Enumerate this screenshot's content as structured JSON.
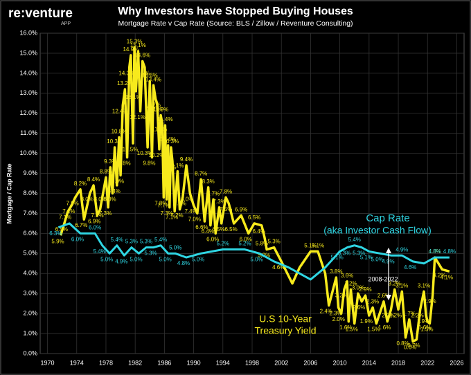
{
  "chart_data": {
    "type": "line",
    "logo": "re:venture",
    "logo_sub": "APP",
    "title": "Why Investors have Stopped Buying Houses",
    "subtitle": "Mortgage Rate v Cap Rate (Source: BLS / Zillow / Reventure Consulting)",
    "y_label": "Mortgage / Cap Rate",
    "annotations": [
      "Cap Rate",
      "(aka Investor Cash Flow)",
      "2008-2022",
      "U.S 10-Year",
      "Treasury Yield"
    ],
    "grid": true,
    "xlim": [
      1969,
      2027
    ],
    "xticks": [
      1970,
      1974,
      1978,
      1982,
      1986,
      1990,
      1994,
      1998,
      2002,
      2006,
      2010,
      2014,
      2018,
      2022,
      2026
    ],
    "ylim": [
      0,
      16
    ],
    "yticks": [
      {
        "value": 0,
        "label": "0.0%"
      },
      {
        "value": 1,
        "label": "1.0%"
      },
      {
        "value": 2,
        "label": "2.0%"
      },
      {
        "value": 3,
        "label": "3.0%"
      },
      {
        "value": 4,
        "label": "4.0%"
      },
      {
        "value": 5,
        "label": "5.0%"
      },
      {
        "value": 6,
        "label": "6.0%"
      },
      {
        "value": 7,
        "label": "7.0%"
      },
      {
        "value": 8,
        "label": "8.0%"
      },
      {
        "value": 9,
        "label": "9.0%"
      },
      {
        "value": 10,
        "label": "10.0%"
      },
      {
        "value": 11,
        "label": "11.0%"
      },
      {
        "value": 12,
        "label": "12.0%"
      },
      {
        "value": 13,
        "label": "13.0%"
      },
      {
        "value": 14,
        "label": "14.0%"
      },
      {
        "value": 15,
        "label": "15.0%"
      },
      {
        "value": 16,
        "label": "16.0%"
      }
    ],
    "series": [
      {
        "color": "#f7ea1c",
        "x": [
          1971.8,
          1972.3,
          1972.8,
          1973.3,
          1973.8,
          1974.5,
          1975.0,
          1975.8,
          1976.3,
          1976.8,
          1977.2,
          1977.6,
          1978.0,
          1978.3,
          1978.6,
          1978.9,
          1979.2,
          1979.5,
          1979.8,
          1980.0,
          1980.3,
          1980.6,
          1980.9,
          1981.2,
          1981.4,
          1981.7,
          1981.9,
          1982.1,
          1982.4,
          1982.7,
          1983.0,
          1983.3,
          1983.7,
          1984.0,
          1984.3,
          1984.5,
          1984.8,
          1985.0,
          1985.3,
          1985.5,
          1985.7,
          1985.9,
          1986.1,
          1986.3,
          1986.5,
          1986.7,
          1986.9,
          1987.1,
          1987.4,
          1987.8,
          1988.1,
          1988.5,
          1989.0,
          1989.5,
          1990.0,
          1990.5,
          1991.0,
          1991.5,
          1992.0,
          1992.3,
          1992.7,
          1993.0,
          1993.5,
          1993.8,
          1994.4,
          1994.8,
          1995.5,
          1996.5,
          1997.5,
          1998.3,
          1999.3,
          1999.7,
          2000.0,
          2001.0,
          2002.0,
          2003.5,
          2004.5,
          2006.0,
          2007.0,
          2008.0,
          2008.5,
          2009.5,
          2009.8,
          2010.2,
          2010.6,
          2011.0,
          2011.2,
          2011.5,
          2012.0,
          2012.5,
          2013.0,
          2013.5,
          2014.0,
          2014.5,
          2015.0,
          2016.0,
          2016.5,
          2017.0,
          2017.5,
          2018.0,
          2018.5,
          2019.0,
          2019.5,
          2020.0,
          2020.5,
          2021.0,
          2021.5,
          2021.8,
          2022.0,
          2022.3,
          2022.7,
          2023.0,
          2024.0,
          2025.0
        ],
        "values": [
          5.9,
          6.5,
          7.1,
          7.4,
          7.8,
          8.2,
          6.7,
          8.0,
          8.4,
          6.9,
          7.2,
          8.0,
          8.8,
          7.3,
          9.3,
          8.0,
          10.3,
          8.4,
          10.8,
          8.9,
          12.4,
          13.2,
          9.8,
          14.3,
          14.9,
          10.5,
          15.3,
          13.1,
          15.1,
          12.1,
          14.6,
          14.3,
          10.3,
          13.6,
          9.8,
          13.4,
          12.7,
          12.5,
          10.2,
          11.9,
          11.5,
          7.8,
          11.4,
          7.7,
          10.4,
          7.3,
          10.3,
          9.6,
          7.1,
          9.1,
          7.2,
          7.8,
          9.4,
          8.0,
          7.4,
          7.0,
          8.7,
          6.6,
          8.3,
          6.4,
          7.7,
          6.0,
          7.3,
          6.5,
          7.8,
          7.5,
          6.5,
          6.9,
          6.0,
          6.5,
          6.4,
          5.8,
          5.2,
          5.3,
          4.6,
          3.5,
          4.3,
          5.1,
          5.1,
          4.0,
          2.4,
          3.8,
          2.3,
          2.0,
          3.2,
          3.6,
          1.6,
          3.2,
          1.5,
          3.0,
          2.6,
          2.9,
          1.9,
          2.3,
          1.5,
          2.6,
          1.6,
          2.2,
          3.2,
          2.2,
          3.1,
          0.8,
          1.7,
          0.6,
          0.7,
          2.2,
          3.1,
          1.9,
          1.6,
          1.5,
          2.9,
          4.8,
          4.2,
          4.1
        ],
        "value_labels": [
          "5.9%",
          "6.5%",
          "7.1%",
          "7.4%",
          "7.8%",
          "8.2%",
          "6.7%",
          "8.0%",
          "8.4%",
          "6.9%",
          "7.2%",
          "8.0%",
          "8.8%",
          "7.3%",
          "9.3%",
          "8.0%",
          "10.3%",
          "8.4%",
          "10.8%",
          "8.9%",
          "12.4%",
          "13.2%",
          "9.8%",
          "14.3%",
          "14.9%",
          "10.5%",
          "15.3%",
          "13.1%",
          "15.1%",
          "12.1%",
          "14.6%",
          "14.3%",
          "10.3%",
          "13.6%",
          "9.8%",
          "13.4%",
          "12.7%",
          "12.5%",
          "10.2%",
          "11.9%",
          "11.5%",
          "7.8%",
          "11.4%",
          "7.7%",
          "10.4%",
          "7.3%",
          "10.3%",
          "9.6%",
          "7.1%",
          "9.1%",
          "7.2%",
          "7.8%",
          "9.4%",
          "8.0%",
          "7.4%",
          "7.0%",
          "8.7%",
          "6.6%",
          "8.3%",
          "6.4%",
          "7.7%",
          "6.0%",
          "7.3%",
          "6.5%",
          "7.8%",
          "7.5%",
          "6.5%",
          "6.9%",
          "6.0%",
          "6.5%",
          "6.4%",
          "5.8%",
          "5.2%",
          "5.3%",
          "4.6%",
          null,
          null,
          "5.1%",
          "5.1%",
          null,
          "2.4%",
          "3.8%",
          "2.3%",
          "2.0%",
          "3.2%",
          "3.6%",
          "1.6%",
          "3.2%",
          "1.5%",
          "3.0%",
          "2.6%",
          "2.9%",
          "1.9%",
          "2.3%",
          "1.5%",
          "2.6%",
          "1.6%",
          "2.2%",
          "3.2%",
          "2.2%",
          "3.1%",
          "0.8%",
          "1.7%",
          "0.6%",
          "0.7%",
          "2.2%",
          "3.1%",
          "1.9%",
          "1.6%",
          "1.5%",
          "2.9%",
          "4.8%",
          "4.2%",
          "4.1%"
        ]
      },
      {
        "color": "#2fd6e3",
        "x": [
          1971.5,
          1973,
          1974.5,
          1976.5,
          1977.5,
          1978.5,
          1979.5,
          1980.5,
          1981.5,
          1982.5,
          1983.5,
          1984.5,
          1985.5,
          1986.5,
          1987.5,
          1989,
          1991,
          1994,
          1997,
          1999,
          2001,
          2003,
          2006,
          2008,
          2010,
          2011,
          2012,
          2013,
          2014,
          2015.5,
          2017,
          2018.5,
          2020,
          2021.5,
          2023,
          2025
        ],
        "values": [
          6.3,
          6.5,
          6.0,
          6.0,
          5.4,
          5.0,
          5.4,
          4.9,
          5.3,
          5.0,
          5.3,
          5.3,
          5.4,
          5.0,
          5.0,
          4.8,
          5.0,
          5.2,
          5.2,
          5.0,
          4.6,
          4.3,
          3.7,
          4.3,
          5.1,
          5.3,
          5.4,
          5.3,
          5.1,
          5.0,
          4.9,
          4.9,
          4.6,
          4.5,
          4.8,
          4.8
        ],
        "value_labels": [
          "6.3%",
          null,
          "6.0%",
          "6.0%",
          "5.4%",
          "5.0%",
          "5.4%",
          "4.9%",
          "5.3%",
          "5.0%",
          "5.3%",
          "5.3%",
          "5.4%",
          "5.0%",
          "5.0%",
          "4.8%",
          "5.0%",
          "5.2%",
          "5.2%",
          "5.0%",
          null,
          null,
          null,
          null,
          "5.1%",
          "5.3%",
          "5.4%",
          "5.3%",
          "5.1%",
          "5.0%",
          "4.9%",
          "4.9%",
          "4.6%",
          null,
          "4.8%",
          "4.8%"
        ]
      }
    ]
  }
}
